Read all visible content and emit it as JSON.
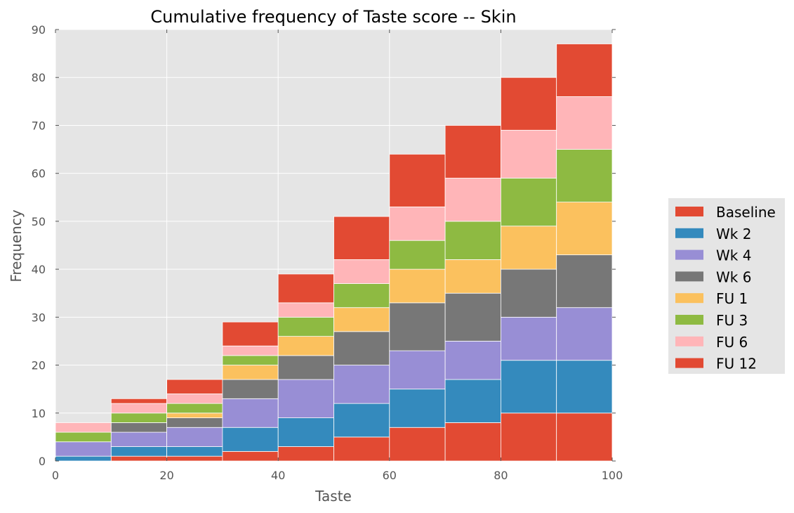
{
  "chart_data": {
    "type": "bar",
    "stacked": true,
    "title": "Cumulative frequency of Taste score -- Skin",
    "xlabel": "Taste",
    "ylabel": "Frequency",
    "xlim": [
      0,
      100
    ],
    "ylim": [
      0,
      90
    ],
    "xticks": [
      "0",
      "20",
      "40",
      "60",
      "80",
      "100"
    ],
    "yticks": [
      "0",
      "10",
      "20",
      "30",
      "40",
      "50",
      "60",
      "70",
      "80",
      "90"
    ],
    "grid": true,
    "legend_position": "right",
    "bins": [
      [
        0,
        10
      ],
      [
        10,
        20
      ],
      [
        20,
        30
      ],
      [
        30,
        40
      ],
      [
        40,
        50
      ],
      [
        50,
        60
      ],
      [
        60,
        70
      ],
      [
        70,
        80
      ],
      [
        80,
        90
      ],
      [
        90,
        100
      ]
    ],
    "series": [
      {
        "name": "Baseline",
        "color": "#E24A33",
        "values": [
          0,
          1,
          1,
          2,
          3,
          5,
          7,
          8,
          10,
          10
        ]
      },
      {
        "name": "Wk 2",
        "color": "#348ABD",
        "values": [
          1,
          2,
          2,
          5,
          6,
          7,
          8,
          9,
          11,
          11
        ]
      },
      {
        "name": "Wk 4",
        "color": "#988ED5",
        "values": [
          3,
          3,
          4,
          6,
          8,
          8,
          8,
          8,
          9,
          11
        ]
      },
      {
        "name": "Wk 6",
        "color": "#777777",
        "values": [
          0,
          2,
          2,
          4,
          5,
          7,
          10,
          10,
          10,
          11
        ]
      },
      {
        "name": "FU 1",
        "color": "#FBC15E",
        "values": [
          0,
          0,
          1,
          3,
          4,
          5,
          7,
          7,
          9,
          11
        ]
      },
      {
        "name": "FU 3",
        "color": "#8EBA42",
        "values": [
          2,
          2,
          2,
          2,
          4,
          5,
          6,
          8,
          10,
          11
        ]
      },
      {
        "name": "FU 6",
        "color": "#FFB5B8",
        "values": [
          2,
          2,
          2,
          2,
          3,
          5,
          7,
          9,
          10,
          11
        ]
      },
      {
        "name": "FU 12",
        "color": "#E24A33",
        "values": [
          0,
          1,
          3,
          5,
          6,
          9,
          11,
          11,
          11,
          11
        ]
      }
    ]
  },
  "style": {
    "plot_background": "#E5E5E5",
    "grid_color": "#FFFFFF",
    "legend_background": "#E5E5E5"
  }
}
